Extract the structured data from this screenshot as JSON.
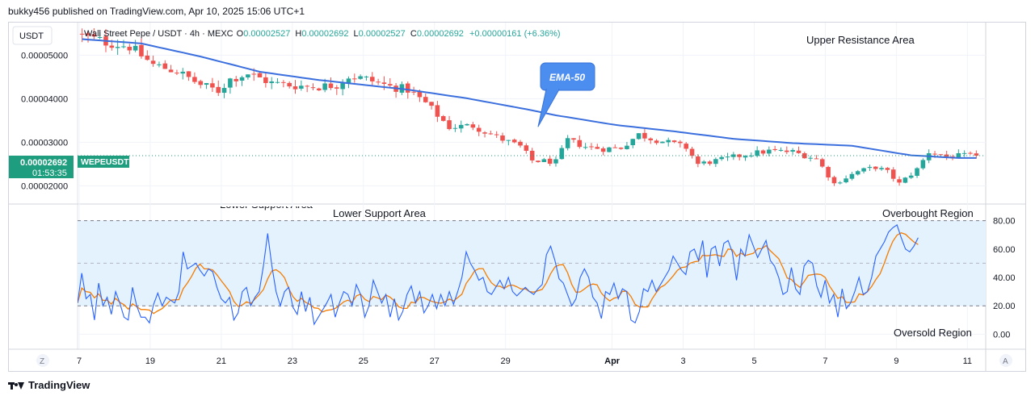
{
  "header": {
    "publish_text": "bukky456 published on TradingView.com, Apr 10, 2025 15:06 UTC+1",
    "currency": "USDT",
    "symbol_info": "Wall Street Pepe / USDT · 4h · MEXC",
    "ohlc": {
      "o_label": "O",
      "o_value": "0.00002527",
      "h_label": "H",
      "h_value": "0.00002692",
      "l_label": "L",
      "l_value": "0.00002527",
      "c_label": "C",
      "c_value": "0.00002692",
      "change": "+0.00000161 (+6.36%)"
    }
  },
  "price_tag": {
    "value": "0.00002692",
    "timer": "01:53:35",
    "symbol": "WEPEUSDT"
  },
  "annotations": {
    "upper_resistance": "Upper Resistance Area",
    "lower_support": "Lower Support Area",
    "lower_support_cut": "Lower Support Area",
    "ema_callout": "EMA-50",
    "overbought": "Overbought Region",
    "oversold": "Oversold Region"
  },
  "buttons": {
    "z": "Z",
    "a": "A"
  },
  "footer": {
    "brand": "TradingView"
  },
  "colors": {
    "up": "#26a69a",
    "down": "#ef5350",
    "ema": "#3b6fde",
    "rsi": "#2962ff",
    "rsi_ma": "#f57c00",
    "band": "#e3f2fd",
    "tag": "#1e9e7e",
    "callout": "#4c8df0"
  },
  "chart_data": [
    {
      "type": "candlestick",
      "name": "price",
      "price_ticks": [
        {
          "value": 5e-05,
          "label": "0.00005000"
        },
        {
          "value": 4e-05,
          "label": "0.00004000"
        },
        {
          "value": 3e-05,
          "label": "0.00003000"
        },
        {
          "value": 2e-05,
          "label": "0.00002000"
        }
      ],
      "x_ticks": [
        {
          "index": 0,
          "label": "7"
        },
        {
          "index": 12,
          "label": "19"
        },
        {
          "index": 24,
          "label": "21"
        },
        {
          "index": 36,
          "label": "23"
        },
        {
          "index": 48,
          "label": "25"
        },
        {
          "index": 60,
          "label": "27"
        },
        {
          "index": 72,
          "label": "29"
        },
        {
          "index": 90,
          "label": "Apr"
        },
        {
          "index": 102,
          "label": "3"
        },
        {
          "index": 114,
          "label": "5"
        },
        {
          "index": 126,
          "label": "7"
        },
        {
          "index": 138,
          "label": "9"
        },
        {
          "index": 150,
          "label": "11"
        }
      ],
      "ylim": [
        1.6e-05,
        5.75e-05
      ],
      "bar_count": 152,
      "ema_anchors": [
        [
          0,
          5.37e-05
        ],
        [
          10,
          5.27e-05
        ],
        [
          20,
          4.97e-05
        ],
        [
          30,
          4.62e-05
        ],
        [
          40,
          4.43e-05
        ],
        [
          55,
          4.21e-05
        ],
        [
          65,
          4.01e-05
        ],
        [
          75,
          3.76e-05
        ],
        [
          80,
          3.62e-05
        ],
        [
          90,
          3.4e-05
        ],
        [
          100,
          3.25e-05
        ],
        [
          110,
          3.08e-05
        ],
        [
          120,
          2.98e-05
        ],
        [
          130,
          2.92e-05
        ],
        [
          135,
          2.81e-05
        ],
        [
          140,
          2.7e-05
        ],
        [
          148,
          2.64e-05
        ]
      ],
      "close_anchors": [
        [
          0,
          5.45e-05
        ],
        [
          4,
          5.3e-05
        ],
        [
          8,
          5.2e-05
        ],
        [
          12,
          4.78e-05
        ],
        [
          16,
          4.63e-05
        ],
        [
          20,
          4.32e-05
        ],
        [
          23,
          4.18e-05
        ],
        [
          25,
          4.45e-05
        ],
        [
          28,
          4.58e-05
        ],
        [
          32,
          4.36e-05
        ],
        [
          36,
          4.3e-05
        ],
        [
          40,
          4.28e-05
        ],
        [
          43,
          4.32e-05
        ],
        [
          45,
          4.52e-05
        ],
        [
          48,
          4.45e-05
        ],
        [
          52,
          4.28e-05
        ],
        [
          55,
          4.21e-05
        ],
        [
          58,
          3.9e-05
        ],
        [
          62,
          3.35e-05
        ],
        [
          66,
          3.38e-05
        ],
        [
          70,
          3.12e-05
        ],
        [
          74,
          2.9e-05
        ],
        [
          76,
          2.58e-05
        ],
        [
          80,
          2.55e-05
        ],
        [
          82,
          3.05e-05
        ],
        [
          85,
          2.9e-05
        ],
        [
          88,
          2.85e-05
        ],
        [
          91,
          2.88e-05
        ],
        [
          94,
          3.18e-05
        ],
        [
          96,
          3.09e-05
        ],
        [
          100,
          2.96e-05
        ],
        [
          102,
          2.88e-05
        ],
        [
          104,
          2.5e-05
        ],
        [
          108,
          2.6e-05
        ],
        [
          112,
          2.72e-05
        ],
        [
          116,
          2.8e-05
        ],
        [
          120,
          2.78e-05
        ],
        [
          124,
          2.62e-05
        ],
        [
          127,
          2.05e-05
        ],
        [
          131,
          2.33e-05
        ],
        [
          134,
          2.43e-05
        ],
        [
          136,
          2.32e-05
        ],
        [
          138,
          2.05e-05
        ],
        [
          141,
          2.38e-05
        ],
        [
          143,
          2.78e-05
        ],
        [
          146,
          2.67e-05
        ],
        [
          149,
          2.69e-05
        ]
      ],
      "last_close": 2.692e-05
    },
    {
      "type": "line",
      "name": "RSI",
      "y_ticks": [
        {
          "value": 80,
          "label": "80.00"
        },
        {
          "value": 60,
          "label": "60.00"
        },
        {
          "value": 40,
          "label": "40.00"
        },
        {
          "value": 20,
          "label": "20.00"
        },
        {
          "value": 0,
          "label": "0.00"
        }
      ],
      "ylim": [
        -10,
        90
      ],
      "band": [
        20,
        80
      ],
      "midline": 50,
      "rsi_anchors": [
        [
          0,
          22
        ],
        [
          1,
          43
        ],
        [
          2,
          25
        ],
        [
          3,
          28
        ],
        [
          4,
          10
        ],
        [
          5,
          36
        ],
        [
          6,
          20
        ],
        [
          7,
          26
        ],
        [
          8,
          14
        ],
        [
          9,
          30
        ],
        [
          10,
          22
        ],
        [
          11,
          12
        ],
        [
          12,
          10
        ],
        [
          13,
          33
        ],
        [
          14,
          20
        ],
        [
          15,
          12
        ],
        [
          16,
          12
        ],
        [
          17,
          8
        ],
        [
          18,
          21
        ],
        [
          19,
          29
        ],
        [
          20,
          20
        ],
        [
          21,
          26
        ],
        [
          22,
          24
        ],
        [
          23,
          22
        ],
        [
          24,
          30
        ],
        [
          25,
          58
        ],
        [
          26,
          46
        ],
        [
          27,
          48
        ],
        [
          28,
          50
        ],
        [
          29,
          45
        ],
        [
          30,
          41
        ],
        [
          31,
          46
        ],
        [
          32,
          44
        ],
        [
          33,
          33
        ],
        [
          34,
          25
        ],
        [
          35,
          22
        ],
        [
          36,
          26
        ],
        [
          37,
          10
        ],
        [
          38,
          15
        ],
        [
          39,
          30
        ],
        [
          40,
          33
        ],
        [
          41,
          20
        ],
        [
          42,
          26
        ],
        [
          43,
          30
        ],
        [
          44,
          48
        ],
        [
          45,
          71
        ],
        [
          46,
          48
        ],
        [
          47,
          30
        ],
        [
          48,
          20
        ],
        [
          49,
          30
        ],
        [
          50,
          33
        ],
        [
          51,
          19
        ],
        [
          52,
          14
        ],
        [
          53,
          30
        ],
        [
          54,
          16
        ],
        [
          55,
          26
        ],
        [
          56,
          7
        ],
        [
          57,
          12
        ],
        [
          58,
          17
        ],
        [
          59,
          22
        ],
        [
          60,
          28
        ],
        [
          61,
          12
        ],
        [
          62,
          22
        ],
        [
          63,
          30
        ],
        [
          64,
          28
        ],
        [
          65,
          20
        ],
        [
          66,
          35
        ],
        [
          67,
          28
        ],
        [
          68,
          12
        ],
        [
          69,
          20
        ],
        [
          70,
          38
        ],
        [
          71,
          30
        ],
        [
          72,
          22
        ],
        [
          73,
          28
        ],
        [
          74,
          12
        ],
        [
          75,
          25
        ],
        [
          76,
          10
        ],
        [
          77,
          16
        ],
        [
          78,
          28
        ],
        [
          79,
          34
        ],
        [
          80,
          22
        ],
        [
          81,
          30
        ],
        [
          82,
          15
        ],
        [
          83,
          20
        ],
        [
          84,
          28
        ],
        [
          85,
          18
        ],
        [
          86,
          28
        ],
        [
          87,
          20
        ],
        [
          88,
          30
        ],
        [
          89,
          21
        ],
        [
          90,
          30
        ],
        [
          91,
          40
        ],
        [
          92,
          58
        ],
        [
          93,
          50
        ],
        [
          94,
          45
        ],
        [
          95,
          38
        ],
        [
          96,
          40
        ],
        [
          97,
          30
        ],
        [
          98,
          28
        ],
        [
          99,
          33
        ],
        [
          100,
          38
        ],
        [
          101,
          32
        ],
        [
          102,
          40
        ],
        [
          103,
          30
        ],
        [
          104,
          27
        ],
        [
          105,
          30
        ],
        [
          106,
          33
        ],
        [
          107,
          30
        ],
        [
          108,
          28
        ],
        [
          109,
          32
        ],
        [
          110,
          35
        ],
        [
          111,
          56
        ],
        [
          112,
          62
        ],
        [
          113,
          52
        ],
        [
          114,
          39
        ],
        [
          115,
          36
        ],
        [
          116,
          28
        ],
        [
          117,
          20
        ],
        [
          118,
          25
        ],
        [
          119,
          40
        ],
        [
          120,
          46
        ],
        [
          121,
          40
        ],
        [
          122,
          26
        ],
        [
          123,
          22
        ],
        [
          124,
          11
        ],
        [
          125,
          30
        ],
        [
          126,
          28
        ],
        [
          127,
          36
        ],
        [
          128,
          25
        ],
        [
          129,
          32
        ],
        [
          130,
          30
        ],
        [
          131,
          10
        ],
        [
          132,
          8
        ],
        [
          133,
          16
        ],
        [
          134,
          32
        ],
        [
          135,
          30
        ],
        [
          136,
          38
        ],
        [
          137,
          30
        ],
        [
          138,
          35
        ],
        [
          139,
          40
        ],
        [
          140,
          45
        ],
        [
          141,
          55
        ],
        [
          142,
          50
        ],
        [
          143,
          45
        ],
        [
          144,
          42
        ],
        [
          145,
          58
        ],
        [
          146,
          60
        ],
        [
          147,
          52
        ],
        [
          148,
          66
        ],
        [
          149,
          40
        ],
        [
          150,
          60
        ],
        [
          151,
          62
        ],
        [
          152,
          48
        ],
        [
          153,
          64
        ],
        [
          154,
          66
        ],
        [
          155,
          58
        ],
        [
          156,
          38
        ],
        [
          157,
          60
        ],
        [
          158,
          55
        ],
        [
          159,
          70
        ],
        [
          160,
          62
        ],
        [
          161,
          54
        ],
        [
          162,
          60
        ],
        [
          163,
          66
        ],
        [
          164,
          52
        ],
        [
          165,
          48
        ],
        [
          166,
          40
        ],
        [
          167,
          28
        ],
        [
          168,
          30
        ],
        [
          169,
          47
        ],
        [
          170,
          32
        ],
        [
          171,
          28
        ],
        [
          172,
          48
        ],
        [
          173,
          52
        ],
        [
          174,
          50
        ],
        [
          175,
          34
        ],
        [
          176,
          26
        ],
        [
          177,
          38
        ],
        [
          178,
          22
        ],
        [
          179,
          28
        ],
        [
          180,
          12
        ],
        [
          181,
          32
        ],
        [
          182,
          18
        ],
        [
          183,
          22
        ],
        [
          184,
          30
        ],
        [
          185,
          40
        ],
        [
          186,
          28
        ],
        [
          187,
          30
        ],
        [
          188,
          40
        ],
        [
          189,
          55
        ],
        [
          190,
          60
        ],
        [
          191,
          65
        ],
        [
          192,
          72
        ],
        [
          193,
          75
        ],
        [
          194,
          77
        ],
        [
          195,
          68
        ],
        [
          196,
          60
        ],
        [
          197,
          58
        ],
        [
          198,
          62
        ],
        [
          199,
          68
        ]
      ]
    }
  ]
}
